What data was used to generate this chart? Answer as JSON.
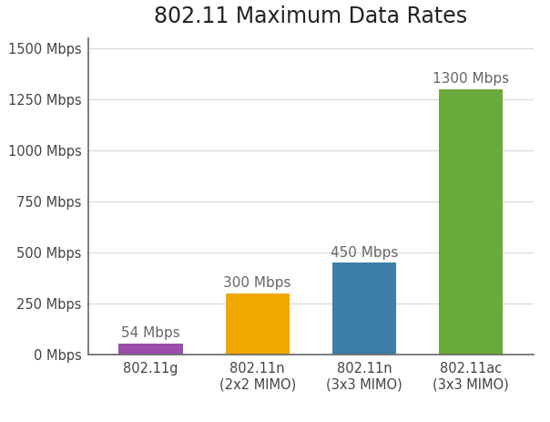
{
  "title": "802.11 Maximum Data Rates",
  "categories": [
    "802.11g",
    "802.11n\n(2x2 MIMO)",
    "802.11n\n(3x3 MIMO)",
    "802.11ac\n(3x3 MIMO)"
  ],
  "values": [
    54,
    300,
    450,
    1300
  ],
  "bar_colors": [
    "#9b4dab",
    "#f0a800",
    "#3d7fa8",
    "#6aaa3a"
  ],
  "annotations": [
    "54 Mbps",
    "300 Mbps",
    "450 Mbps",
    "1300 Mbps"
  ],
  "ylim": [
    0,
    1550
  ],
  "yticks": [
    0,
    250,
    500,
    750,
    1000,
    1250,
    1500
  ],
  "ytick_labels": [
    "0 Mbps",
    "250 Mbps",
    "500 Mbps",
    "750 Mbps",
    "1000 Mbps",
    "1250 Mbps",
    "1500 Mbps"
  ],
  "title_fontsize": 17,
  "annotation_fontsize": 11,
  "tick_fontsize": 10.5,
  "bar_width": 0.6,
  "background_color": "#ffffff",
  "grid_color": "#d8d8d8",
  "annotation_color": "#666666",
  "spine_color": "#666666",
  "text_color": "#444444"
}
